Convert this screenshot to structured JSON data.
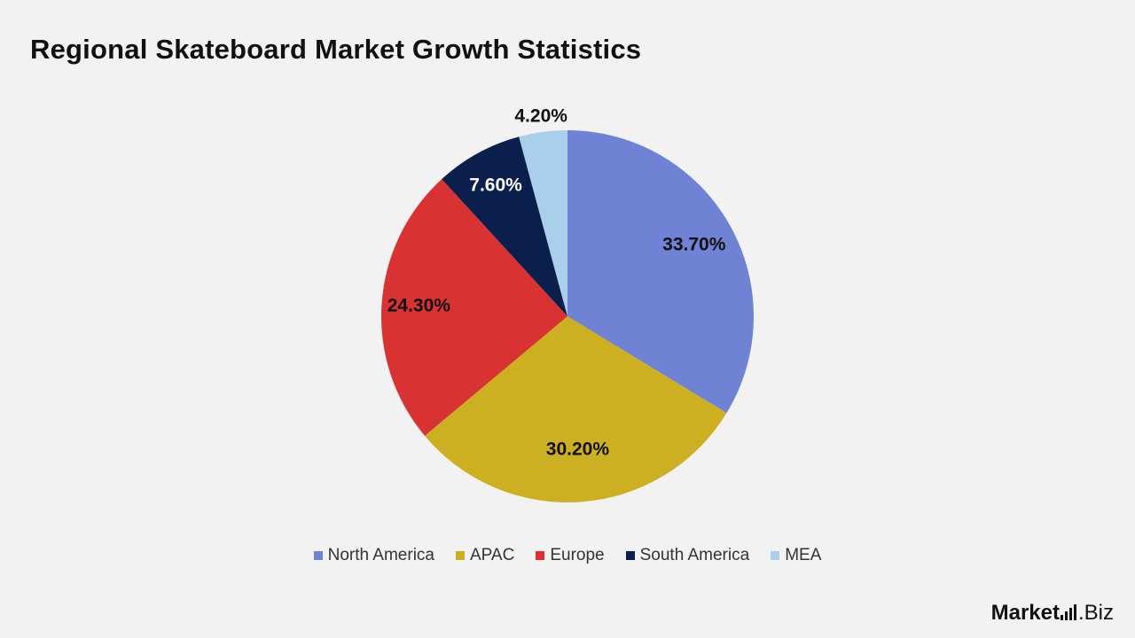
{
  "title": "Regional Skateboard Market Growth Statistics",
  "brand": {
    "main": "Market",
    "tld": ".Biz"
  },
  "chart_data": {
    "type": "pie",
    "unit": "%",
    "categories": [
      "North America",
      "APAC",
      "Europe",
      "South America",
      "MEA"
    ],
    "values": [
      33.7,
      30.2,
      24.3,
      7.6,
      4.2
    ],
    "labels": [
      "33.70%",
      "30.20%",
      "24.30%",
      "7.60%",
      "4.20%"
    ],
    "colors": [
      "#6f82d4",
      "#cdb022",
      "#d93232",
      "#0b1f4d",
      "#aacfeb"
    ],
    "label_colors": [
      "#111111",
      "#111111",
      "#111111",
      "#ffffff",
      "#111111"
    ],
    "legend_position": "bottom",
    "start": "12 o'clock",
    "direction": "clockwise"
  },
  "legend": [
    {
      "label": "North America",
      "color": "#6f82d4"
    },
    {
      "label": "APAC",
      "color": "#cdb022"
    },
    {
      "label": "Europe",
      "color": "#d93232"
    },
    {
      "label": "South America",
      "color": "#0b1f4d"
    },
    {
      "label": "MEA",
      "color": "#aacfeb"
    }
  ]
}
